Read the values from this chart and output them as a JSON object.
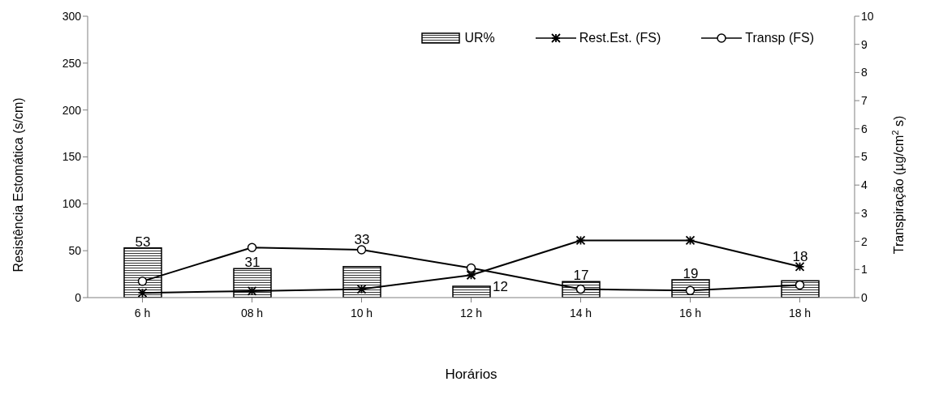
{
  "chart_data": {
    "type": "bar",
    "xlabel": "Horários",
    "ylabel": "Resistência Estomática (s/cm)",
    "y2label": "Transpiração (µg/cm$^{2}$ s)",
    "categories": [
      "6 h",
      "08 h",
      "10 h",
      "12 h",
      "14 h",
      "16 h",
      "18 h"
    ],
    "series": [
      {
        "name": "UR%",
        "color": "#000000",
        "values": [
          53,
          31,
          33,
          12,
          17,
          19,
          18
        ],
        "data_labels": true
      },
      {
        "name": "Rest.Est. (FS)",
        "type": "line",
        "color": "#000000",
        "marker": "cross",
        "values": [
          5,
          7,
          9,
          24,
          61,
          61,
          33
        ]
      },
      {
        "name": "Transp (FS)",
        "type": "line",
        "color": "#000000",
        "marker": "circle",
        "axis": "y2",
        "values": [
          0.58,
          1.78,
          1.7,
          1.05,
          0.3,
          0.25,
          0.45
        ]
      }
    ],
    "ylim": [
      0,
      300
    ],
    "yticks": [
      0,
      50,
      100,
      150,
      200,
      250,
      300
    ],
    "y2lim": [
      0,
      10
    ],
    "y2ticks": [
      0,
      1,
      2,
      3,
      4,
      5,
      6,
      7,
      8,
      9,
      10
    ],
    "grid": false,
    "legend": "top right"
  }
}
